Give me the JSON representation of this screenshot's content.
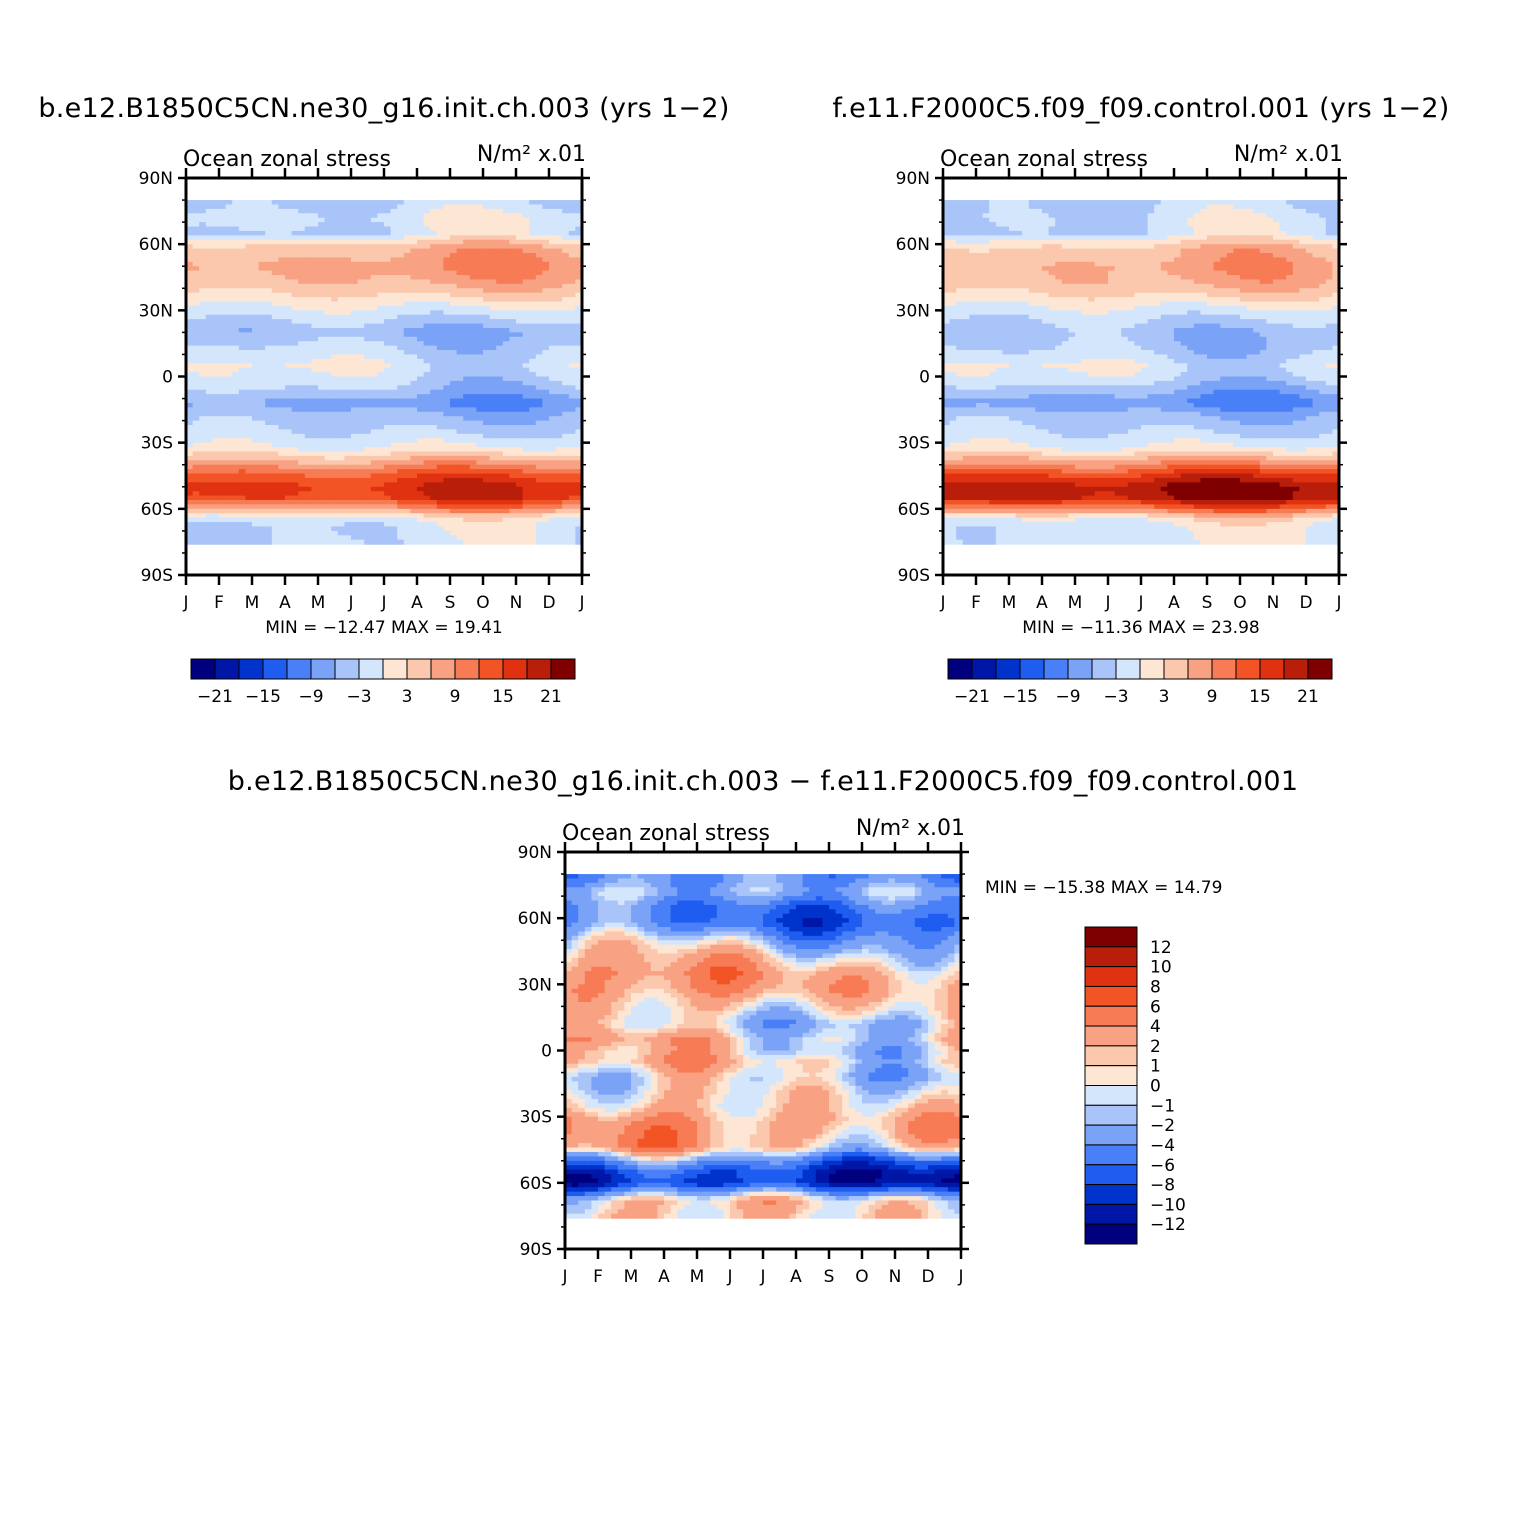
{
  "figure": {
    "left_title": "b.e12.B1850C5CN.ne30_g16.init.ch.003 (yrs 1−2)",
    "right_title": "f.e11.F2000C5.f09_f09.control.001 (yrs 1−2)",
    "bottom_title": "b.e12.B1850C5CN.ne30_g16.init.ch.003 − f.e11.F2000C5.f09_f09.control.001"
  },
  "colors": {
    "abs_scale": [
      "#00007f",
      "#0016a6",
      "#0033cc",
      "#1f5cf0",
      "#4a80f7",
      "#7aa3f7",
      "#a8c4f8",
      "#d4e6fc",
      "#fde6d4",
      "#fbc8ad",
      "#f9a283",
      "#f77b54",
      "#f25425",
      "#e03210",
      "#b81e0a",
      "#7f0000"
    ],
    "diff_scale": [
      "#00007f",
      "#0016a6",
      "#0033cc",
      "#1f5cf0",
      "#4a80f7",
      "#7aa3f7",
      "#a8c4f8",
      "#d4e6fc",
      "#fde6d4",
      "#fbc8ad",
      "#f9a283",
      "#f77b54",
      "#f25425",
      "#e03210",
      "#b81e0a",
      "#7f0000"
    ]
  },
  "chart_data": [
    {
      "type": "heatmap",
      "title": "b.e12.B1850C5CN.ne30_g16.init.ch.003 (yrs 1−2)",
      "subtitle_left": "Ocean zonal stress",
      "subtitle_right": "N/m² x.01",
      "x_ticks": [
        "J",
        "F",
        "M",
        "A",
        "M",
        "J",
        "J",
        "A",
        "S",
        "O",
        "N",
        "D",
        "J"
      ],
      "y_ticks": [
        "90N",
        "60N",
        "30N",
        "0",
        "30S",
        "60S",
        "90S"
      ],
      "ylim": [
        -90,
        90
      ],
      "min_max": "MIN = −12.47 MAX =  19.41",
      "min": -12.47,
      "max": 19.41,
      "colorbar_labels": [
        "−21",
        "−15",
        "−9",
        "−3",
        "3",
        "9",
        "15",
        "21"
      ],
      "zonal_profile": {
        "lat": [
          78,
          72,
          65,
          58,
          50,
          42,
          35,
          28,
          20,
          12,
          5,
          0,
          -5,
          -12,
          -18,
          -25,
          -32,
          -38,
          -44,
          -50,
          -55,
          -60,
          -64,
          -68
        ],
        "value": [
          -3,
          -1,
          -2,
          6,
          8,
          6,
          2,
          -2,
          -6,
          -3,
          -1,
          -2,
          -4,
          -8,
          -5,
          -3,
          0,
          6,
          13,
          17,
          16,
          8,
          0,
          -2
        ]
      }
    },
    {
      "type": "heatmap",
      "title": "f.e11.F2000C5.f09_f09.control.001 (yrs 1−2)",
      "subtitle_left": "Ocean zonal stress",
      "subtitle_right": "N/m² x.01",
      "x_ticks": [
        "J",
        "F",
        "M",
        "A",
        "M",
        "J",
        "J",
        "A",
        "S",
        "O",
        "N",
        "D",
        "J"
      ],
      "y_ticks": [
        "90N",
        "60N",
        "30N",
        "0",
        "30S",
        "60S",
        "90S"
      ],
      "ylim": [
        -90,
        90
      ],
      "min_max": "MIN = −11.36 MAX =  23.98",
      "min": -11.36,
      "max": 23.98,
      "colorbar_labels": [
        "−21",
        "−15",
        "−9",
        "−3",
        "3",
        "9",
        "15",
        "21"
      ],
      "zonal_profile": {
        "lat": [
          78,
          72,
          65,
          58,
          50,
          42,
          35,
          28,
          20,
          12,
          5,
          0,
          -5,
          -12,
          -18,
          -25,
          -32,
          -38,
          -44,
          -50,
          -55,
          -60,
          -64,
          -68
        ],
        "value": [
          -3,
          -2,
          -2,
          5,
          7,
          6,
          2,
          -2,
          -5,
          -4,
          -1,
          -2,
          -5,
          -9,
          -5,
          -3,
          0,
          7,
          15,
          21,
          20,
          11,
          2,
          -1
        ]
      }
    },
    {
      "type": "heatmap",
      "title": "b.e12.B1850C5CN.ne30_g16.init.ch.003 − f.e11.F2000C5.f09_f09.control.001",
      "subtitle_left": "Ocean zonal stress",
      "subtitle_right": "N/m² x.01",
      "x_ticks": [
        "J",
        "F",
        "M",
        "A",
        "M",
        "J",
        "J",
        "A",
        "S",
        "O",
        "N",
        "D",
        "J"
      ],
      "y_ticks": [
        "90N",
        "60N",
        "30N",
        "0",
        "30S",
        "60S",
        "90S"
      ],
      "ylim": [
        -90,
        90
      ],
      "min_max": "MIN = −15.38 MAX =   14.79",
      "min": -15.38,
      "max": 14.79,
      "colorbar_labels": [
        "12",
        "10",
        "8",
        "6",
        "4",
        "2",
        "1",
        "0",
        "−1",
        "−2",
        "−4",
        "−6",
        "−8",
        "−10",
        "−12"
      ],
      "zonal_profile": {
        "lat": [
          78,
          72,
          65,
          58,
          50,
          42,
          35,
          28,
          20,
          12,
          5,
          0,
          -5,
          -12,
          -18,
          -25,
          -32,
          -38,
          -44,
          -50,
          -55,
          -60,
          -64,
          -68
        ],
        "value": [
          -4,
          -2,
          -5,
          -6,
          -2,
          1,
          3,
          3,
          1,
          -1,
          1,
          0,
          1,
          -1,
          0,
          1,
          3,
          3,
          2,
          -5,
          -9,
          -10,
          -4,
          1
        ]
      }
    }
  ]
}
